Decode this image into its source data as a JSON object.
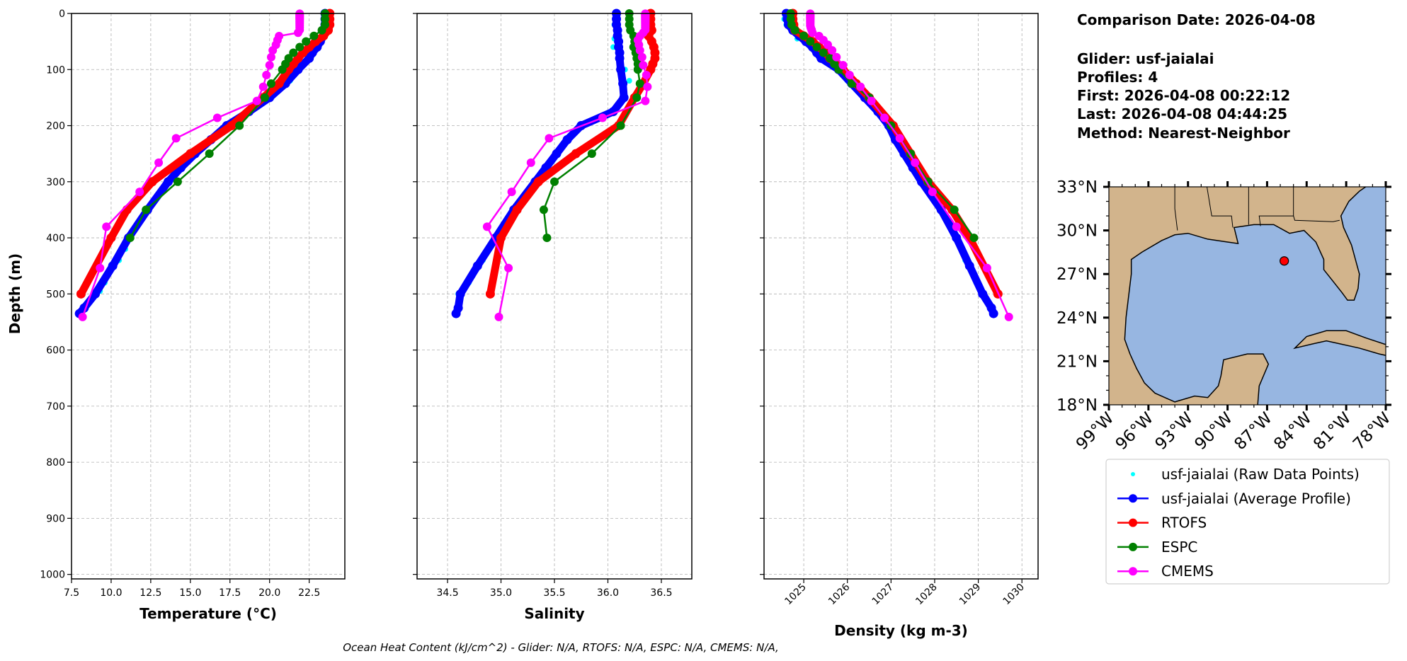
{
  "info": {
    "comparison_date": "Comparison Date: 2026-04-08",
    "glider": "Glider: usf-jaialai",
    "profiles": "Profiles: 4",
    "first": "First: 2026-04-08 00:22:12",
    "last": "Last: 2026-04-08 04:44:25",
    "method": "Method: Nearest-Neighbor"
  },
  "footer": "Ocean Heat Content (kJ/cm^2) - Glider: N/A,  RTOFS: N/A,  ESPC: N/A,  CMEMS: N/A,",
  "legend": [
    {
      "label": "usf-jaialai (Raw Data Points)",
      "color": "#00ffff",
      "style": "point"
    },
    {
      "label": "usf-jaialai (Average Profile)",
      "color": "#0000ff",
      "style": "line-marker"
    },
    {
      "label": "RTOFS",
      "color": "#ff0000",
      "style": "line-marker"
    },
    {
      "label": "ESPC",
      "color": "#008000",
      "style": "line-marker"
    },
    {
      "label": "CMEMS",
      "color": "#ff00ff",
      "style": "line-marker"
    }
  ],
  "chart_data": [
    {
      "type": "line",
      "id": "temperature",
      "xlabel": "Temperature (°C)",
      "ylabel": "Depth (m)",
      "xlim": [
        7.5,
        24.75
      ],
      "ylim": [
        1008,
        0
      ],
      "xticks": [
        "7.5",
        "10.0",
        "12.5",
        "15.0",
        "17.5",
        "20.0",
        "22.5"
      ],
      "yticks": [
        "0",
        "100",
        "200",
        "300",
        "400",
        "500",
        "600",
        "700",
        "800",
        "900",
        "1000"
      ],
      "grid": true
    },
    {
      "type": "line",
      "id": "salinity",
      "xlabel": "Salinity",
      "xlim": [
        34.215,
        36.785
      ],
      "ylim": [
        1008,
        0
      ],
      "xticks": [
        "34.5",
        "35.0",
        "35.5",
        "36.0",
        "36.5"
      ],
      "grid": true
    },
    {
      "type": "line",
      "id": "density",
      "xlabel": "Density (kg m-3)",
      "xlim": [
        1024.09,
        1030.37
      ],
      "ylim": [
        1008,
        0
      ],
      "xticks": [
        "1025",
        "1026",
        "1027",
        "1028",
        "1029",
        "1030"
      ],
      "grid": true
    }
  ],
  "series": {
    "raw": {
      "name": "usf-jaialai (Raw Data Points)",
      "color": "#00ffff",
      "depth": [
        10,
        20,
        45,
        60,
        100,
        120,
        420,
        440,
        480,
        495,
        500,
        510
      ],
      "temperature": [
        23.5,
        23.6,
        23.3,
        23.0,
        21.9,
        21.3,
        10.9,
        10.5,
        9.6,
        9.3,
        8.9,
        8.7
      ],
      "salinity": [
        36.07,
        36.06,
        36.06,
        36.05,
        36.16,
        36.2,
        34.88,
        34.83,
        34.7,
        34.64,
        34.6,
        34.61
      ],
      "density": [
        1024.55,
        1024.6,
        1024.85,
        1025.15,
        1025.75,
        1026.0,
        1028.6,
        1028.7,
        1028.95,
        1029.05,
        1029.1,
        1029.15
      ]
    },
    "glider": {
      "name": "usf-jaialai (Average Profile)",
      "color": "#0000ff",
      "depth": [
        0,
        10,
        20,
        30,
        40,
        50,
        60,
        70,
        80,
        100,
        125,
        150,
        175,
        200,
        225,
        250,
        275,
        300,
        350,
        400,
        450,
        500,
        525,
        535
      ],
      "temperature": [
        23.5,
        23.5,
        23.5,
        23.5,
        23.4,
        23.2,
        23.0,
        22.7,
        22.5,
        21.8,
        21.0,
        20.0,
        18.7,
        17.3,
        16.3,
        15.3,
        14.4,
        13.6,
        12.3,
        11.1,
        10.1,
        9.0,
        8.3,
        8.0
      ],
      "salinity": [
        36.08,
        36.08,
        36.08,
        36.09,
        36.09,
        36.1,
        36.1,
        36.11,
        36.11,
        36.12,
        36.14,
        36.15,
        36.05,
        35.75,
        35.62,
        35.52,
        35.42,
        35.32,
        35.12,
        34.95,
        34.78,
        34.62,
        34.6,
        34.58
      ],
      "density": [
        1024.6,
        1024.62,
        1024.65,
        1024.75,
        1024.9,
        1025.05,
        1025.2,
        1025.3,
        1025.4,
        1025.8,
        1026.1,
        1026.4,
        1026.7,
        1026.95,
        1027.1,
        1027.3,
        1027.5,
        1027.7,
        1028.15,
        1028.5,
        1028.8,
        1029.1,
        1029.3,
        1029.35
      ]
    },
    "rtofs": {
      "name": "RTOFS",
      "color": "#ff0000",
      "depth": [
        0,
        10,
        20,
        30,
        40,
        50,
        60,
        70,
        80,
        90,
        100,
        125,
        150,
        200,
        250,
        300,
        350,
        400,
        500
      ],
      "temperature": [
        23.8,
        23.8,
        23.8,
        23.7,
        23.4,
        22.9,
        22.5,
        22.1,
        21.8,
        21.5,
        21.2,
        20.6,
        19.6,
        17.6,
        15.0,
        12.6,
        11.0,
        10.0,
        8.1
      ],
      "salinity": [
        36.4,
        36.4,
        36.4,
        36.41,
        36.38,
        36.41,
        36.43,
        36.44,
        36.44,
        36.42,
        36.4,
        36.33,
        36.25,
        36.1,
        35.7,
        35.35,
        35.15,
        35.0,
        34.9
      ],
      "density": [
        1024.75,
        1024.75,
        1024.77,
        1024.8,
        1025.0,
        1025.2,
        1025.35,
        1025.5,
        1025.6,
        1025.75,
        1025.9,
        1026.2,
        1026.5,
        1027.05,
        1027.45,
        1027.85,
        1028.4,
        1028.8,
        1029.45
      ]
    },
    "espc": {
      "name": "ESPC",
      "color": "#008000",
      "depth": [
        0,
        10,
        20,
        30,
        40,
        50,
        60,
        70,
        80,
        90,
        100,
        125,
        150,
        200,
        250,
        300,
        350,
        400
      ],
      "temperature": [
        23.5,
        23.5,
        23.5,
        23.3,
        22.8,
        22.3,
        21.9,
        21.5,
        21.2,
        21.0,
        20.8,
        20.1,
        19.7,
        18.1,
        16.2,
        14.2,
        12.2,
        11.2
      ],
      "salinity": [
        36.2,
        36.2,
        36.2,
        36.21,
        36.24,
        36.25,
        36.24,
        36.26,
        36.27,
        36.28,
        36.28,
        36.3,
        36.27,
        36.12,
        35.85,
        35.5,
        35.4,
        35.43
      ],
      "density": [
        1024.7,
        1024.7,
        1024.72,
        1024.8,
        1025.0,
        1025.15,
        1025.3,
        1025.45,
        1025.6,
        1025.7,
        1025.8,
        1026.1,
        1026.5,
        1027.0,
        1027.45,
        1027.85,
        1028.45,
        1028.9
      ]
    },
    "cmems": {
      "name": "CMEMS",
      "color": "#ff00ff",
      "depth": [
        0.5,
        1.5,
        2.6,
        3.8,
        5.1,
        6.4,
        7.9,
        9.6,
        11.4,
        13.5,
        15.8,
        18.5,
        21.6,
        25.2,
        29.4,
        34.4,
        40.3,
        47.4,
        55.8,
        65.8,
        77.9,
        92.3,
        109.7,
        130.7,
        155.9,
        186.1,
        222.5,
        266.0,
        318.1,
        380.2,
        453.9,
        541.1
      ],
      "temperature": [
        21.9,
        21.9,
        21.9,
        21.9,
        21.9,
        21.9,
        21.9,
        21.9,
        21.9,
        21.9,
        21.9,
        21.9,
        21.9,
        21.9,
        21.9,
        21.8,
        20.6,
        20.5,
        20.4,
        20.2,
        20.1,
        20.0,
        19.8,
        19.6,
        19.2,
        16.7,
        14.1,
        13.0,
        11.8,
        9.7,
        9.3,
        8.2
      ],
      "salinity": [
        36.35,
        36.35,
        36.35,
        36.35,
        36.35,
        36.35,
        36.35,
        36.35,
        36.35,
        36.35,
        36.35,
        36.35,
        36.35,
        36.35,
        36.35,
        36.33,
        36.3,
        36.28,
        36.29,
        36.3,
        36.32,
        36.33,
        36.36,
        36.37,
        36.35,
        35.95,
        35.45,
        35.28,
        35.1,
        34.87,
        35.07,
        34.98
      ],
      "density": [
        1025.15,
        1025.15,
        1025.15,
        1025.15,
        1025.15,
        1025.15,
        1025.15,
        1025.15,
        1025.15,
        1025.15,
        1025.15,
        1025.15,
        1025.15,
        1025.16,
        1025.18,
        1025.2,
        1025.35,
        1025.45,
        1025.55,
        1025.65,
        1025.75,
        1025.9,
        1026.05,
        1026.3,
        1026.55,
        1026.85,
        1027.2,
        1027.55,
        1027.95,
        1028.5,
        1029.2,
        1029.7
      ]
    }
  },
  "map": {
    "lon_range": [
      -99,
      -78
    ],
    "lat_range": [
      18,
      33
    ],
    "lat_ticks": [
      "18°N",
      "21°N",
      "24°N",
      "27°N",
      "30°N",
      "33°N"
    ],
    "lon_ticks": [
      "99°W",
      "96°W",
      "93°W",
      "90°W",
      "87°W",
      "84°W",
      "81°W",
      "78°W"
    ],
    "glider_location": {
      "lon": -85.7,
      "lat": 27.9
    },
    "land_color": "#d2b48c",
    "water_color": "#97b6e1",
    "marker_color": "#ff0000"
  }
}
